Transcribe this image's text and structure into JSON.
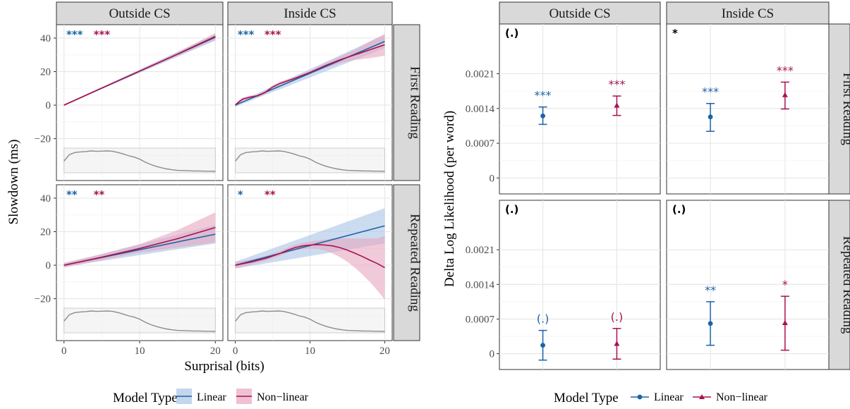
{
  "colors": {
    "linear": "#1b63a6",
    "nonlinear": "#a8114f",
    "linear_fill": "#a9c4e6",
    "nonlinear_fill": "#e8a7bf",
    "strip_bg": "#d9d9d9",
    "density": "#8c8c8c"
  },
  "chart_data": [
    {
      "type": "line",
      "panel": "left",
      "xlabel": "Surprisal (bits)",
      "ylabel": "Slowdown (ms)",
      "xlim": [
        -1,
        21
      ],
      "ylim": [
        -45,
        48
      ],
      "xticks": [
        0,
        10,
        20
      ],
      "yticks": [
        -20,
        0,
        20,
        40
      ],
      "columns": [
        "Outside CS",
        "Inside CS"
      ],
      "rows": [
        "First Reading",
        "Repeated Reading"
      ],
      "legend": {
        "title": "Model Type",
        "entries": [
          "Linear",
          "Non−linear"
        ],
        "position": "bottom"
      },
      "facets": [
        {
          "column": "Outside CS",
          "row": "First Reading",
          "sig_linear": "***",
          "sig_nonlinear": "***",
          "linear": {
            "x": [
              0,
              20
            ],
            "y": [
              0,
              40.5
            ],
            "ci": [
              [
                0,
                0
              ],
              [
                38.5,
                42.5
              ]
            ]
          },
          "nonlinear": {
            "x": [
              0,
              5,
              10,
              15,
              20
            ],
            "y": [
              0,
              10.2,
              20.3,
              30.4,
              41.0
            ],
            "lower": [
              -0.5,
              9.7,
              19.6,
              29.3,
              39.0
            ],
            "upper": [
              0.5,
              10.7,
              21.0,
              31.5,
              43.0
            ]
          }
        },
        {
          "column": "Inside CS",
          "row": "First Reading",
          "sig_linear": "***",
          "sig_nonlinear": "***",
          "linear": {
            "x": [
              0,
              20
            ],
            "y": [
              0,
              38
            ],
            "ci": [
              [
                -1,
                1
              ],
              [
                34,
                42
              ]
            ]
          },
          "nonlinear": {
            "x": [
              0,
              0.5,
              1,
              2,
              3,
              4,
              5,
              6,
              8,
              10,
              12,
              14,
              16,
              18,
              20
            ],
            "y": [
              0,
              2,
              3.6,
              4.8,
              5.6,
              7.6,
              10.8,
              13.0,
              16.0,
              19.5,
              23.5,
              27.0,
              30.0,
              33.0,
              36.0
            ],
            "lower": [
              -1,
              1,
              2.6,
              3.9,
              4.7,
              6.6,
              9.8,
              12.0,
              15.0,
              18.5,
              22.0,
              25.0,
              27.0,
              28.0,
              29.5
            ],
            "upper": [
              1,
              3,
              4.6,
              5.7,
              6.5,
              8.6,
              11.8,
              14.0,
              17.0,
              20.5,
              25.0,
              29.0,
              33.0,
              38.0,
              42.5
            ]
          }
        },
        {
          "column": "Outside CS",
          "row": "Repeated Reading",
          "sig_linear": "**",
          "sig_nonlinear": "**",
          "linear": {
            "x": [
              0,
              20
            ],
            "y": [
              0,
              18.5
            ],
            "ci": [
              [
                -1,
                1
              ],
              [
                13,
                24
              ]
            ]
          },
          "nonlinear": {
            "x": [
              0,
              5,
              10,
              15,
              20
            ],
            "y": [
              0,
              4.8,
              10.0,
              15.8,
              22.5
            ],
            "lower": [
              -1.5,
              3.0,
              7.5,
              10.5,
              13.5
            ],
            "upper": [
              1.5,
              6.6,
              12.5,
              21.0,
              31.5
            ]
          }
        },
        {
          "column": "Inside CS",
          "row": "Repeated Reading",
          "sig_linear": "*",
          "sig_nonlinear": "**",
          "linear": {
            "x": [
              0,
              20
            ],
            "y": [
              0,
              23.5
            ],
            "ci": [
              [
                -2,
                2
              ],
              [
                13,
                34
              ]
            ]
          },
          "nonlinear": {
            "x": [
              0,
              2,
              4,
              6,
              7,
              8,
              9,
              10,
              11,
              12,
              13,
              14,
              15,
              16,
              17,
              18,
              19,
              20
            ],
            "y": [
              0,
              1.8,
              4.0,
              7.0,
              9.0,
              10.5,
              11.5,
              12.0,
              12.3,
              12.0,
              11.5,
              10.5,
              9.0,
              7.2,
              5.2,
              3.0,
              1.0,
              -1.5
            ],
            "lower": [
              -2,
              0.3,
              2.6,
              5.6,
              7.5,
              8.8,
              9.6,
              9.9,
              9.8,
              8.8,
              7.0,
              4.8,
              2.0,
              -1.5,
              -5.5,
              -10.0,
              -15.0,
              -20.5
            ],
            "upper": [
              2,
              3.3,
              5.4,
              8.4,
              10.5,
              12.2,
              13.4,
              14.1,
              14.8,
              15.2,
              16.0,
              16.2,
              16.0,
              15.9,
              15.9,
              16.0,
              16.0,
              17.5
            ]
          }
        }
      ]
    },
    {
      "type": "scatter",
      "panel": "right",
      "xlabel": "",
      "ylabel": "Delta Log Likelihood (per word)",
      "ylim": [
        -0.00032,
        0.0031
      ],
      "yticks": [
        0,
        0.0007,
        0.0014,
        0.0021
      ],
      "ytick_labels": [
        "0",
        "0.0007",
        "0.0014",
        "0.0021"
      ],
      "columns": [
        "Outside CS",
        "Inside CS"
      ],
      "rows": [
        "First Reading",
        "Repeated Reading"
      ],
      "legend": {
        "title": "Model Type",
        "entries": [
          "Linear",
          "Non−linear"
        ],
        "position": "bottom"
      },
      "facets": [
        {
          "column": "Outside CS",
          "row": "First Reading",
          "corner": "(.)",
          "linear": {
            "y": 0.00125,
            "lo": 0.00108,
            "hi": 0.00143,
            "sig": "***"
          },
          "nonlinear": {
            "y": 0.00146,
            "lo": 0.00126,
            "hi": 0.00165,
            "sig": "***"
          }
        },
        {
          "column": "Inside CS",
          "row": "First Reading",
          "corner": "*",
          "linear": {
            "y": 0.00123,
            "lo": 0.00094,
            "hi": 0.0015,
            "sig": "***"
          },
          "nonlinear": {
            "y": 0.00167,
            "lo": 0.00139,
            "hi": 0.00193,
            "sig": "***"
          }
        },
        {
          "column": "Outside CS",
          "row": "Repeated Reading",
          "corner": "(.)",
          "linear": {
            "y": 0.00017,
            "lo": -0.00013,
            "hi": 0.00047,
            "sig": "(.)"
          },
          "nonlinear": {
            "y": 0.0002,
            "lo": -0.00011,
            "hi": 0.00051,
            "sig": "(.)"
          }
        },
        {
          "column": "Inside CS",
          "row": "Repeated Reading",
          "corner": "(.)",
          "linear": {
            "y": 0.00061,
            "lo": 0.00017,
            "hi": 0.00105,
            "sig": "**"
          },
          "nonlinear": {
            "y": 0.00062,
            "lo": 7e-05,
            "hi": 0.00116,
            "sig": "*"
          }
        }
      ]
    }
  ]
}
